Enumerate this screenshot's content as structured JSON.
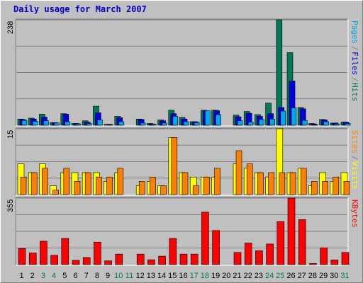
{
  "title": "Daily usage for March 2007",
  "colors": {
    "hits": "#007856",
    "files": "#0000e0",
    "pages": "#00a8f0",
    "visits": "#ffff00",
    "sites": "#ff8000",
    "kbytes": "#ff0000",
    "weekend_label": "#007856",
    "weekday_label": "#000000",
    "background": "#c0c0c0",
    "grid": "#808080"
  },
  "chart_data": [
    {
      "type": "bar",
      "name": "hits-files-pages",
      "max_label": "238",
      "ylim": [
        0,
        238
      ],
      "legend": [
        "Pages",
        "/",
        "Files",
        "/",
        "Hits"
      ],
      "x": [
        1,
        2,
        3,
        4,
        5,
        6,
        7,
        8,
        9,
        10,
        11,
        12,
        13,
        14,
        15,
        16,
        17,
        18,
        19,
        20,
        21,
        22,
        23,
        24,
        25,
        26,
        27,
        28,
        29,
        30,
        31
      ],
      "series": [
        {
          "name": "Hits",
          "values": [
            14,
            16,
            25,
            6,
            26,
            4,
            10,
            43,
            2,
            20,
            0,
            14,
            4,
            12,
            34,
            18,
            8,
            34,
            34,
            0,
            23,
            31,
            24,
            50,
            238,
            164,
            40,
            4,
            13,
            5,
            7
          ]
        },
        {
          "name": "Files",
          "values": [
            13,
            14,
            18,
            6,
            25,
            4,
            7,
            28,
            2,
            17,
            0,
            13,
            3,
            10,
            26,
            14,
            8,
            32,
            33,
            0,
            19,
            27,
            20,
            26,
            40,
            100,
            37,
            3,
            12,
            5,
            7
          ]
        },
        {
          "name": "Pages",
          "values": [
            11,
            9,
            10,
            5,
            8,
            3,
            4,
            12,
            1,
            8,
            0,
            5,
            2,
            5,
            20,
            8,
            6,
            33,
            24,
            0,
            10,
            7,
            13,
            14,
            32,
            39,
            11,
            1,
            8,
            3,
            4
          ]
        }
      ]
    },
    {
      "type": "bar",
      "name": "visits-sites",
      "max_label": "15",
      "ylim": [
        0,
        15
      ],
      "legend": [
        "Sites",
        "/",
        "Visits"
      ],
      "x": [
        1,
        2,
        3,
        4,
        5,
        6,
        7,
        8,
        9,
        10,
        11,
        12,
        13,
        14,
        15,
        16,
        17,
        18,
        19,
        20,
        21,
        22,
        23,
        24,
        25,
        26,
        27,
        28,
        29,
        30,
        31
      ],
      "series": [
        {
          "name": "Visits",
          "values": [
            7,
            5,
            7,
            2,
            5,
            5,
            5,
            5,
            3,
            5,
            0,
            2,
            3,
            2,
            13,
            5,
            4,
            4,
            4,
            0,
            7,
            6,
            5,
            4,
            15,
            5,
            6,
            2,
            5,
            3,
            5
          ]
        },
        {
          "name": "Sites",
          "values": [
            4,
            5,
            6,
            1,
            6,
            3,
            5,
            4,
            4,
            6,
            0,
            3,
            4,
            2,
            13,
            5,
            2,
            4,
            6,
            0,
            10,
            7,
            5,
            5,
            5,
            5,
            6,
            3,
            3,
            4,
            3
          ]
        }
      ]
    },
    {
      "type": "bar",
      "name": "kbytes",
      "max_label": "355",
      "ylim": [
        0,
        355
      ],
      "legend": [
        "KBytes"
      ],
      "x": [
        1,
        2,
        3,
        4,
        5,
        6,
        7,
        8,
        9,
        10,
        11,
        12,
        13,
        14,
        15,
        16,
        17,
        18,
        19,
        20,
        21,
        22,
        23,
        24,
        25,
        26,
        27,
        28,
        29,
        30,
        31
      ],
      "series": [
        {
          "name": "KBytes",
          "values": [
            86,
            62,
            125,
            50,
            140,
            23,
            38,
            120,
            20,
            56,
            0,
            56,
            26,
            45,
            140,
            56,
            56,
            280,
            182,
            0,
            65,
            115,
            74,
            110,
            230,
            355,
            240,
            6,
            90,
            25,
            65
          ]
        }
      ]
    }
  ],
  "x_labels": [
    {
      "label": "1",
      "weekend": false
    },
    {
      "label": "2",
      "weekend": false
    },
    {
      "label": "3",
      "weekend": true
    },
    {
      "label": "4",
      "weekend": true
    },
    {
      "label": "5",
      "weekend": false
    },
    {
      "label": "6",
      "weekend": false
    },
    {
      "label": "7",
      "weekend": false
    },
    {
      "label": "8",
      "weekend": false
    },
    {
      "label": "9",
      "weekend": false
    },
    {
      "label": "10",
      "weekend": true
    },
    {
      "label": "11",
      "weekend": true
    },
    {
      "label": "12",
      "weekend": false
    },
    {
      "label": "13",
      "weekend": false
    },
    {
      "label": "14",
      "weekend": false
    },
    {
      "label": "15",
      "weekend": false
    },
    {
      "label": "16",
      "weekend": false
    },
    {
      "label": "17",
      "weekend": true
    },
    {
      "label": "18",
      "weekend": true
    },
    {
      "label": "19",
      "weekend": false
    },
    {
      "label": "20",
      "weekend": false
    },
    {
      "label": "21",
      "weekend": false
    },
    {
      "label": "22",
      "weekend": false
    },
    {
      "label": "23",
      "weekend": false
    },
    {
      "label": "24",
      "weekend": true
    },
    {
      "label": "25",
      "weekend": true
    },
    {
      "label": "26",
      "weekend": false
    },
    {
      "label": "27",
      "weekend": false
    },
    {
      "label": "28",
      "weekend": false
    },
    {
      "label": "29",
      "weekend": false
    },
    {
      "label": "30",
      "weekend": false
    },
    {
      "label": "31",
      "weekend": true
    }
  ]
}
